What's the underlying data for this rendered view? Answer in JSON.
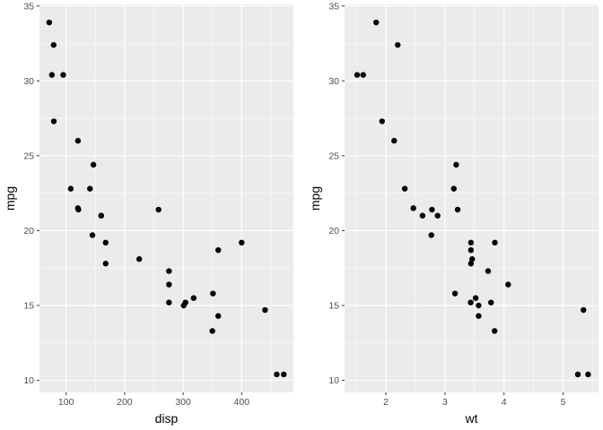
{
  "colors": {
    "panel_background": "#ebebeb",
    "gridline_major": "#ffffff",
    "point": "#000000",
    "tick_text": "#4d4d4d"
  },
  "chart_data": [
    {
      "type": "scatter",
      "title": "",
      "xlabel": "disp",
      "ylabel": "mpg",
      "xlim": [
        54.5,
        488.5
      ],
      "ylim": [
        9.2,
        35.1
      ],
      "x_ticks": [
        100,
        200,
        300,
        400
      ],
      "y_ticks": [
        10,
        15,
        20,
        25,
        30,
        35
      ],
      "grid": true,
      "legend": "none",
      "series": [
        {
          "points": [
            [
              160,
              21.0
            ],
            [
              160,
              21.0
            ],
            [
              108,
              22.8
            ],
            [
              258,
              21.4
            ],
            [
              360,
              18.7
            ],
            [
              225,
              18.1
            ],
            [
              360,
              14.3
            ],
            [
              146.7,
              24.4
            ],
            [
              140.8,
              22.8
            ],
            [
              167.6,
              19.2
            ],
            [
              167.6,
              17.8
            ],
            [
              275.8,
              16.4
            ],
            [
              275.8,
              17.3
            ],
            [
              275.8,
              15.2
            ],
            [
              472,
              10.4
            ],
            [
              460,
              10.4
            ],
            [
              440,
              14.7
            ],
            [
              78.7,
              32.4
            ],
            [
              75.7,
              30.4
            ],
            [
              71.1,
              33.9
            ],
            [
              120.1,
              21.5
            ],
            [
              318,
              15.5
            ],
            [
              304,
              15.2
            ],
            [
              350,
              13.3
            ],
            [
              400,
              19.2
            ],
            [
              79,
              27.3
            ],
            [
              120.3,
              26.0
            ],
            [
              95.1,
              30.4
            ],
            [
              351,
              15.8
            ],
            [
              145,
              19.7
            ],
            [
              301,
              15.0
            ],
            [
              121,
              21.4
            ]
          ]
        }
      ]
    },
    {
      "type": "scatter",
      "title": "",
      "xlabel": "wt",
      "ylabel": "mpg",
      "xlim": [
        1.3,
        5.6
      ],
      "ylim": [
        9.2,
        35.1
      ],
      "x_ticks": [
        2,
        3,
        4,
        5
      ],
      "y_ticks": [
        10,
        15,
        20,
        25,
        30,
        35
      ],
      "grid": true,
      "legend": "none",
      "series": [
        {
          "points": [
            [
              2.62,
              21.0
            ],
            [
              2.875,
              21.0
            ],
            [
              2.32,
              22.8
            ],
            [
              3.215,
              21.4
            ],
            [
              3.44,
              18.7
            ],
            [
              3.46,
              18.1
            ],
            [
              3.57,
              14.3
            ],
            [
              3.19,
              24.4
            ],
            [
              3.15,
              22.8
            ],
            [
              3.44,
              19.2
            ],
            [
              3.44,
              17.8
            ],
            [
              4.07,
              16.4
            ],
            [
              3.73,
              17.3
            ],
            [
              3.78,
              15.2
            ],
            [
              5.25,
              10.4
            ],
            [
              5.424,
              10.4
            ],
            [
              5.345,
              14.7
            ],
            [
              2.2,
              32.4
            ],
            [
              1.615,
              30.4
            ],
            [
              1.835,
              33.9
            ],
            [
              2.465,
              21.5
            ],
            [
              3.52,
              15.5
            ],
            [
              3.435,
              15.2
            ],
            [
              3.84,
              13.3
            ],
            [
              3.845,
              19.2
            ],
            [
              1.935,
              27.3
            ],
            [
              2.14,
              26.0
            ],
            [
              1.513,
              30.4
            ],
            [
              3.17,
              15.8
            ],
            [
              2.77,
              19.7
            ],
            [
              3.57,
              15.0
            ],
            [
              2.78,
              21.4
            ]
          ]
        }
      ]
    }
  ]
}
